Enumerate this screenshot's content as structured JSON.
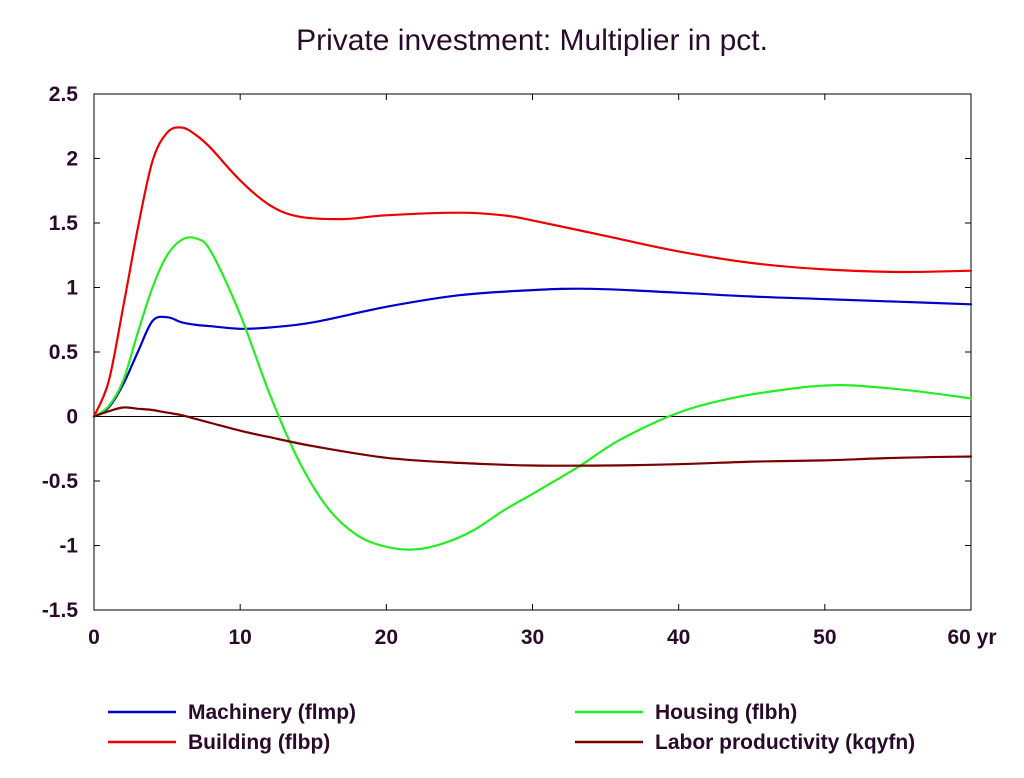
{
  "chart_data": {
    "type": "line",
    "title": "Private investment: Multiplier in pct.",
    "xlabel": "",
    "ylabel": "",
    "xlim": [
      0,
      60
    ],
    "ylim": [
      -1.5,
      2.5
    ],
    "x_ticks": [
      0,
      10,
      20,
      30,
      40,
      50,
      60
    ],
    "x_tick_labels": [
      "0",
      "10",
      "20",
      "30",
      "40",
      "50",
      "60 yr"
    ],
    "y_ticks": [
      -1.5,
      -1,
      -0.5,
      0,
      0.5,
      1,
      1.5,
      2,
      2.5
    ],
    "y_tick_labels": [
      "-1.5",
      "-1",
      "-0.5",
      "0",
      "0.5",
      "1",
      "1.5",
      "2",
      "2.5"
    ],
    "grid": false,
    "zero_line": true,
    "legend_position": "bottom",
    "series": [
      {
        "name": "Machinery (flmp)",
        "color": "#0000cc",
        "x": [
          0,
          1,
          2,
          3,
          4,
          5,
          6,
          7,
          8,
          10,
          12,
          15,
          20,
          25,
          30,
          34,
          40,
          45,
          50,
          55,
          60
        ],
        "values": [
          0,
          0.07,
          0.25,
          0.5,
          0.74,
          0.77,
          0.73,
          0.71,
          0.7,
          0.68,
          0.69,
          0.73,
          0.85,
          0.94,
          0.98,
          0.99,
          0.96,
          0.93,
          0.91,
          0.89,
          0.87
        ]
      },
      {
        "name": "Building (flbp)",
        "color": "#ee0000",
        "x": [
          0,
          1,
          2,
          3,
          4,
          5,
          6,
          7,
          8,
          10,
          12,
          14,
          17,
          20,
          25,
          28,
          30,
          35,
          40,
          45,
          50,
          55,
          60
        ],
        "values": [
          0,
          0.27,
          0.85,
          1.46,
          1.98,
          2.2,
          2.24,
          2.18,
          2.08,
          1.83,
          1.64,
          1.55,
          1.53,
          1.56,
          1.58,
          1.56,
          1.52,
          1.4,
          1.28,
          1.19,
          1.14,
          1.12,
          1.13
        ]
      },
      {
        "name": "Housing (flbh)",
        "color": "#22ee22",
        "x": [
          0,
          1,
          2,
          3,
          4,
          5,
          6,
          7,
          8,
          10,
          12,
          14,
          16,
          18,
          20,
          22,
          24,
          26,
          28,
          30,
          33,
          36,
          40,
          44,
          48,
          50,
          52,
          56,
          60
        ],
        "values": [
          0,
          0.08,
          0.28,
          0.65,
          1.0,
          1.25,
          1.37,
          1.38,
          1.28,
          0.79,
          0.18,
          -0.34,
          -0.71,
          -0.92,
          -1.01,
          -1.03,
          -0.98,
          -0.88,
          -0.73,
          -0.6,
          -0.4,
          -0.18,
          0.03,
          0.15,
          0.22,
          0.24,
          0.24,
          0.2,
          0.14
        ]
      },
      {
        "name": "Labor productivity (kqyfn)",
        "color": "#7a0000",
        "x": [
          0,
          1,
          2,
          3,
          4,
          5,
          6,
          7,
          8,
          10,
          12,
          15,
          20,
          25,
          30,
          35,
          40,
          45,
          50,
          55,
          60
        ],
        "values": [
          0,
          0.04,
          0.07,
          0.06,
          0.05,
          0.03,
          0.01,
          -0.02,
          -0.05,
          -0.11,
          -0.16,
          -0.23,
          -0.32,
          -0.36,
          -0.38,
          -0.38,
          -0.37,
          -0.35,
          -0.34,
          -0.32,
          -0.31
        ]
      }
    ]
  }
}
